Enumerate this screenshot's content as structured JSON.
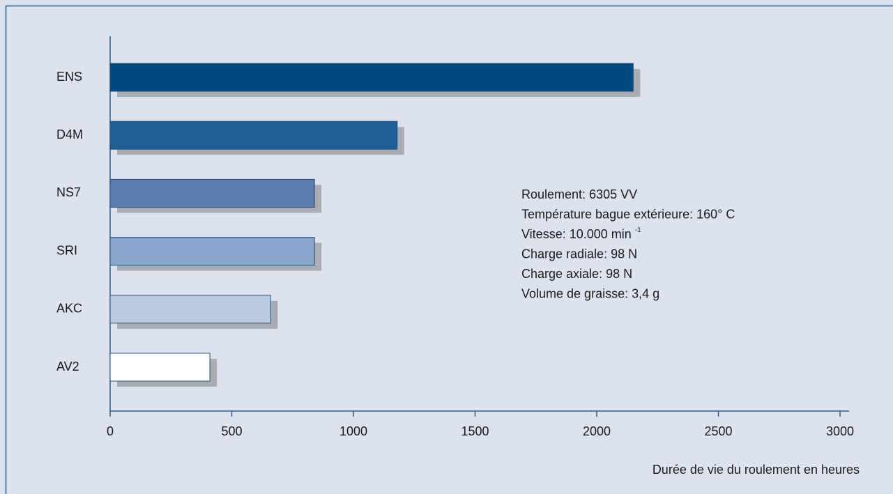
{
  "chart_data": {
    "type": "barh",
    "categories": [
      "ENS",
      "D4M",
      "NS7",
      "SRI",
      "AKC",
      "AV2"
    ],
    "values": [
      2150,
      1180,
      840,
      840,
      660,
      410
    ],
    "colors": [
      "#004a80",
      "#1f5f96",
      "#5a7db0",
      "#8aa5cc",
      "#bcc9e2",
      "#ffffff"
    ],
    "xlim": [
      0,
      3000
    ],
    "xticks": [
      0,
      500,
      1000,
      1500,
      2000,
      2500,
      3000
    ],
    "xlabel": "Durée de vie du roulement en heures",
    "grid": false,
    "annotations": [
      "Roulement: 6305 VV",
      "Température bague extérieure: 160° C",
      {
        "text": "Vitesse: 10.000 min",
        "superscript": "-1"
      },
      "Charge radiale: 98 N",
      "Charge axiale: 98 N",
      "Volume de graisse: 3,4 g"
    ]
  }
}
